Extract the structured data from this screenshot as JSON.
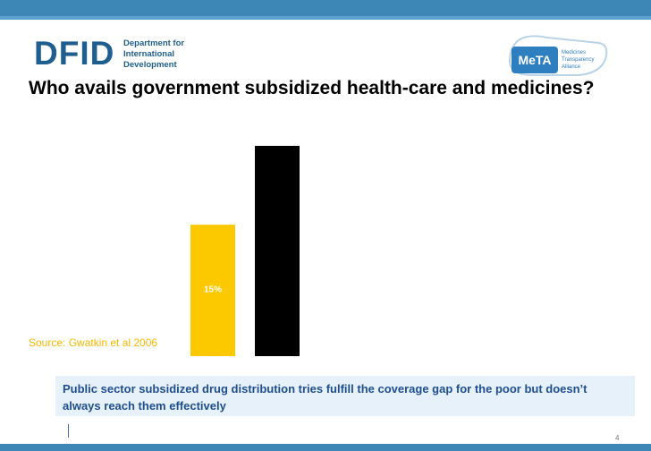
{
  "header": {
    "dfid_logo": {
      "word": "DFID",
      "lines": [
        "Department for",
        "International",
        "Development"
      ]
    },
    "meta_logo": {
      "word": "MeTA",
      "lines": [
        "Medicines",
        "Transparency",
        "Alliance"
      ]
    },
    "bar_color": "#3d87b7"
  },
  "slide": {
    "title": "Who avails government subsidized health-care and medicines?",
    "source": "Source: Gwatkin et al 2006",
    "callout": "Public sector subsidized drug distribution tries fulfill the coverage gap for the poor but doesn’t always reach them effectively",
    "page_number": "4"
  },
  "chart_data": {
    "type": "bar",
    "series": [
      {
        "values": [
          15
        ],
        "label": "15%",
        "color": "#fcc800"
      },
      {
        "values": [
          24
        ],
        "label": "",
        "color": "#000000"
      }
    ],
    "ylim": [
      0,
      24
    ]
  }
}
